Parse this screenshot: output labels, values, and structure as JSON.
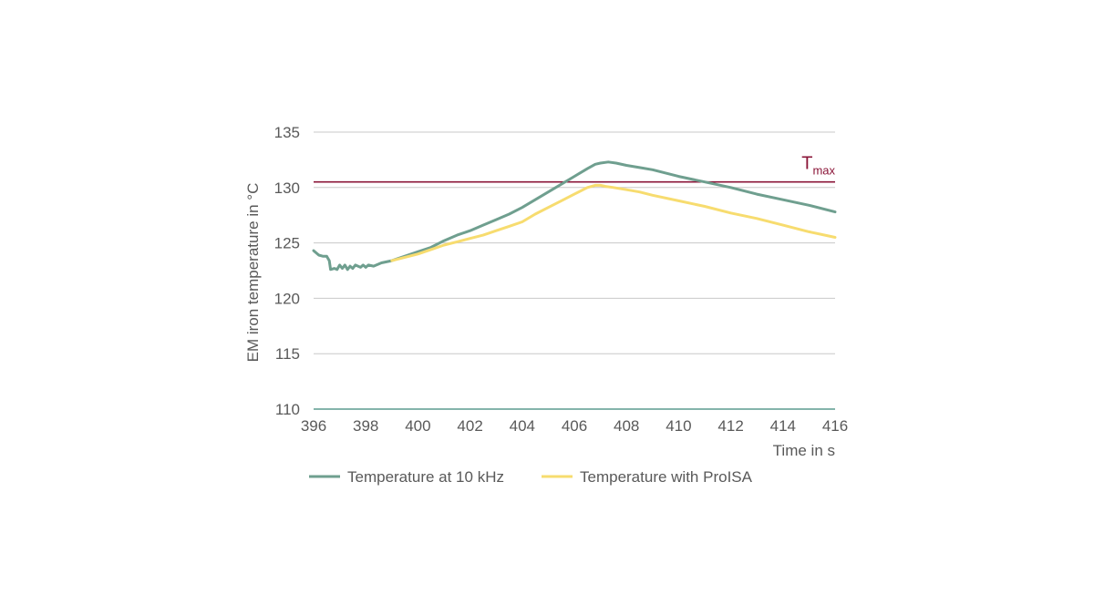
{
  "chart_data": {
    "type": "line",
    "xlabel": "Time in s",
    "ylabel": "EM iron temperature in °C",
    "xlim": [
      396,
      416
    ],
    "ylim": [
      110,
      135
    ],
    "x_ticks": [
      "396",
      "398",
      "400",
      "402",
      "404",
      "406",
      "408",
      "410",
      "412",
      "414",
      "416"
    ],
    "y_ticks": [
      "110",
      "115",
      "120",
      "125",
      "130",
      "135"
    ],
    "grid": "horizontal",
    "legend_position": "bottom",
    "reference_line": {
      "value": 130.5,
      "label_main": "T",
      "label_sub": "max",
      "color": "#8b1538"
    },
    "series": [
      {
        "name": "Temperature at 10 kHz",
        "color": "#6f9f8f",
        "points": [
          [
            396.0,
            124.3
          ],
          [
            396.2,
            123.9
          ],
          [
            396.35,
            123.8
          ],
          [
            396.5,
            123.8
          ],
          [
            396.6,
            123.4
          ],
          [
            396.65,
            122.6
          ],
          [
            396.8,
            122.7
          ],
          [
            396.9,
            122.6
          ],
          [
            397.0,
            123.0
          ],
          [
            397.1,
            122.7
          ],
          [
            397.2,
            123.0
          ],
          [
            397.3,
            122.6
          ],
          [
            397.4,
            122.9
          ],
          [
            397.5,
            122.7
          ],
          [
            397.6,
            123.0
          ],
          [
            397.8,
            122.8
          ],
          [
            397.9,
            123.0
          ],
          [
            398.0,
            122.8
          ],
          [
            398.1,
            123.0
          ],
          [
            398.3,
            122.9
          ],
          [
            398.5,
            123.1
          ],
          [
            398.6,
            123.2
          ],
          [
            399.0,
            123.4
          ],
          [
            399.5,
            123.8
          ],
          [
            400.0,
            124.2
          ],
          [
            400.5,
            124.6
          ],
          [
            401.0,
            125.2
          ],
          [
            401.5,
            125.7
          ],
          [
            402.0,
            126.1
          ],
          [
            402.5,
            126.6
          ],
          [
            403.0,
            127.1
          ],
          [
            403.5,
            127.6
          ],
          [
            404.0,
            128.2
          ],
          [
            404.5,
            128.9
          ],
          [
            405.0,
            129.6
          ],
          [
            405.5,
            130.3
          ],
          [
            406.0,
            131.0
          ],
          [
            406.5,
            131.7
          ],
          [
            406.8,
            132.1
          ],
          [
            407.0,
            132.2
          ],
          [
            407.3,
            132.3
          ],
          [
            407.6,
            132.2
          ],
          [
            408.0,
            132.0
          ],
          [
            408.5,
            131.8
          ],
          [
            409.0,
            131.6
          ],
          [
            410.0,
            131.0
          ],
          [
            411.0,
            130.5
          ],
          [
            412.0,
            130.0
          ],
          [
            413.0,
            129.4
          ],
          [
            414.0,
            128.9
          ],
          [
            415.0,
            128.4
          ],
          [
            416.0,
            127.8
          ]
        ]
      },
      {
        "name": "Temperature with ProISA",
        "color": "#f7dc6f",
        "points": [
          [
            399.0,
            123.4
          ],
          [
            399.5,
            123.7
          ],
          [
            400.0,
            124.0
          ],
          [
            400.5,
            124.4
          ],
          [
            401.0,
            124.8
          ],
          [
            401.5,
            125.1
          ],
          [
            402.0,
            125.4
          ],
          [
            402.5,
            125.7
          ],
          [
            403.0,
            126.1
          ],
          [
            403.5,
            126.5
          ],
          [
            404.0,
            126.9
          ],
          [
            404.5,
            127.6
          ],
          [
            405.0,
            128.2
          ],
          [
            405.5,
            128.8
          ],
          [
            406.0,
            129.4
          ],
          [
            406.5,
            130.0
          ],
          [
            406.8,
            130.2
          ],
          [
            407.0,
            130.2
          ],
          [
            407.2,
            130.1
          ],
          [
            407.5,
            130.0
          ],
          [
            408.0,
            129.8
          ],
          [
            408.5,
            129.6
          ],
          [
            409.0,
            129.3
          ],
          [
            410.0,
            128.8
          ],
          [
            411.0,
            128.3
          ],
          [
            412.0,
            127.7
          ],
          [
            413.0,
            127.2
          ],
          [
            414.0,
            126.6
          ],
          [
            415.0,
            126.0
          ],
          [
            416.0,
            125.5
          ]
        ]
      }
    ]
  }
}
